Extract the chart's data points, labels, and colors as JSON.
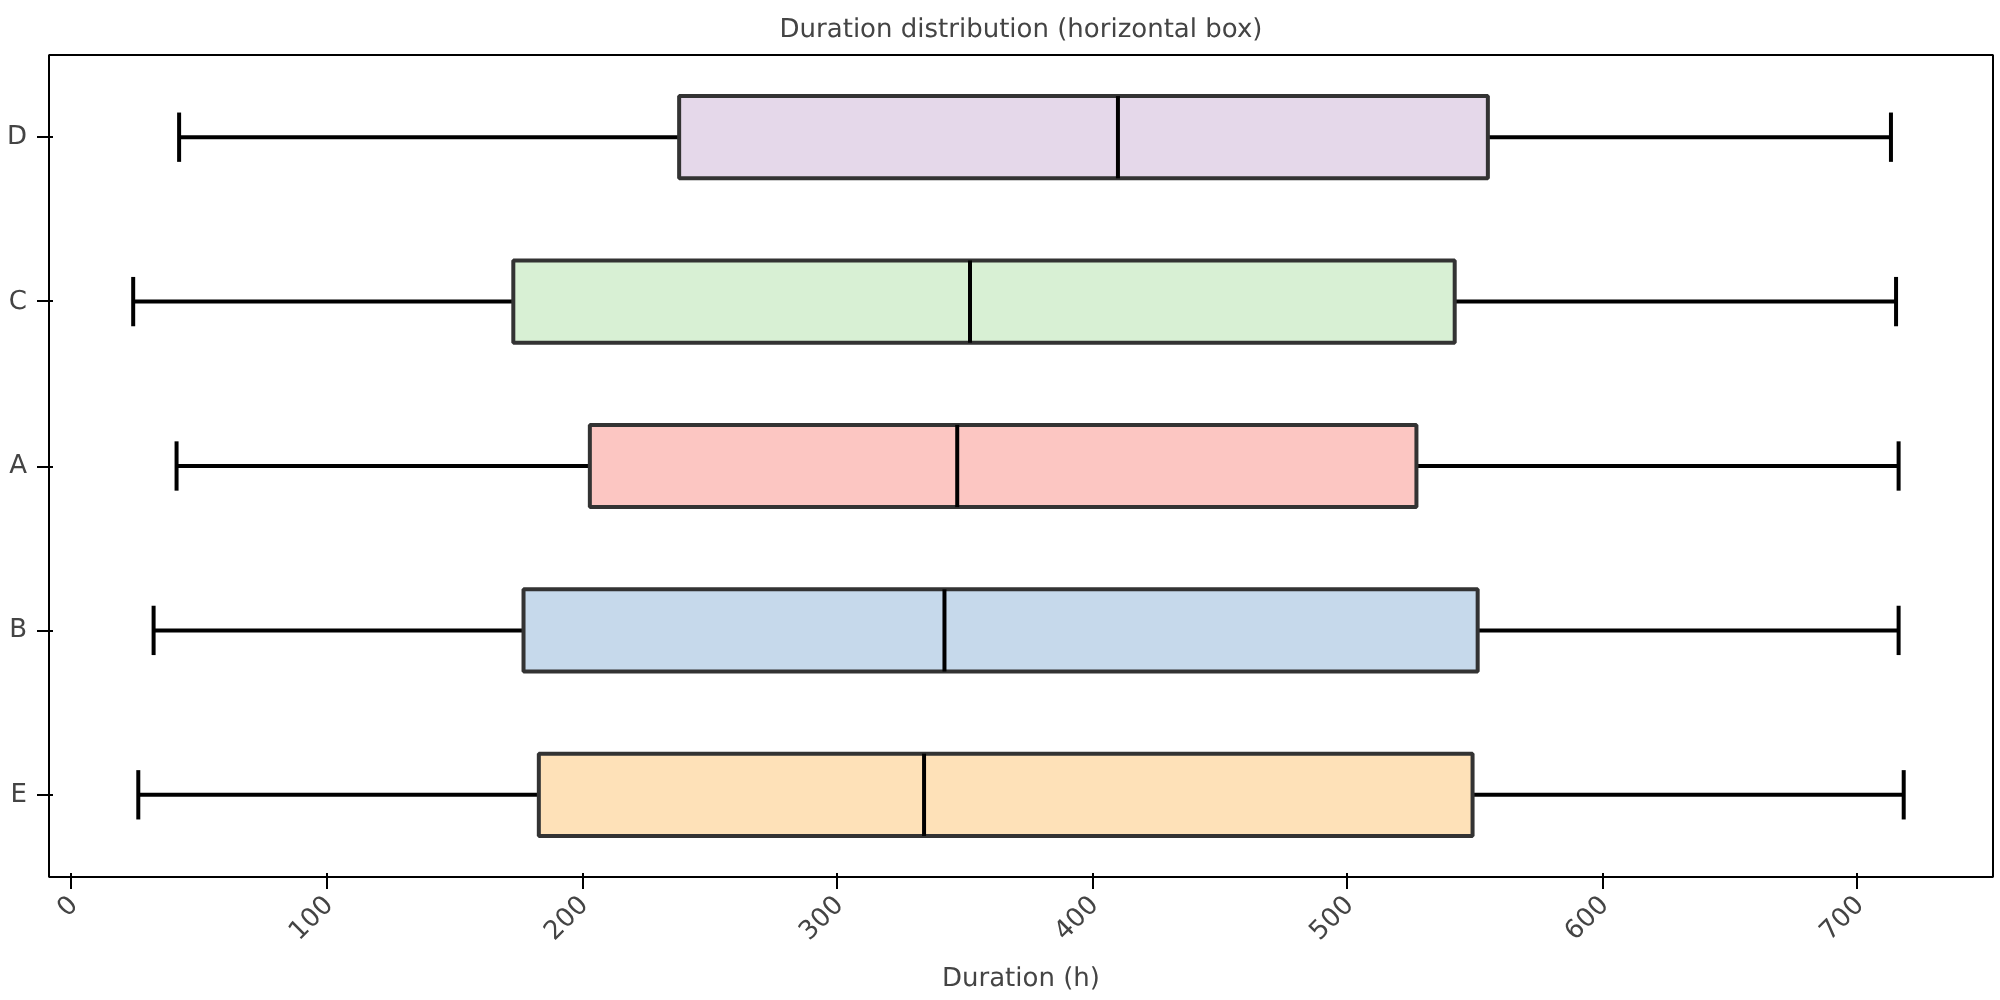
{
  "chart_data": {
    "type": "box",
    "orientation": "horizontal",
    "title": "Duration distribution (horizontal box)",
    "xlabel": "Duration (h)",
    "categories": [
      "D",
      "C",
      "A",
      "B",
      "E"
    ],
    "colors": [
      "#e5d8ea",
      "#d8f0d4",
      "#fcc6c2",
      "#c6d9eb",
      "#fee1b8"
    ],
    "boxes": [
      {
        "low": 42,
        "q1": 238,
        "median": 410,
        "q3": 555,
        "high": 713
      },
      {
        "low": 24,
        "q1": 173,
        "median": 352,
        "q3": 542,
        "high": 715
      },
      {
        "low": 41,
        "q1": 203,
        "median": 347,
        "q3": 527,
        "high": 716
      },
      {
        "low": 32,
        "q1": 177,
        "median": 342,
        "q3": 551,
        "high": 716
      },
      {
        "low": 26,
        "q1": 183,
        "median": 334,
        "q3": 549,
        "high": 718
      }
    ],
    "xlim": [
      -9,
      753
    ],
    "xticks": [
      0,
      100,
      200,
      300,
      400,
      500,
      600,
      700
    ],
    "grid": false
  }
}
